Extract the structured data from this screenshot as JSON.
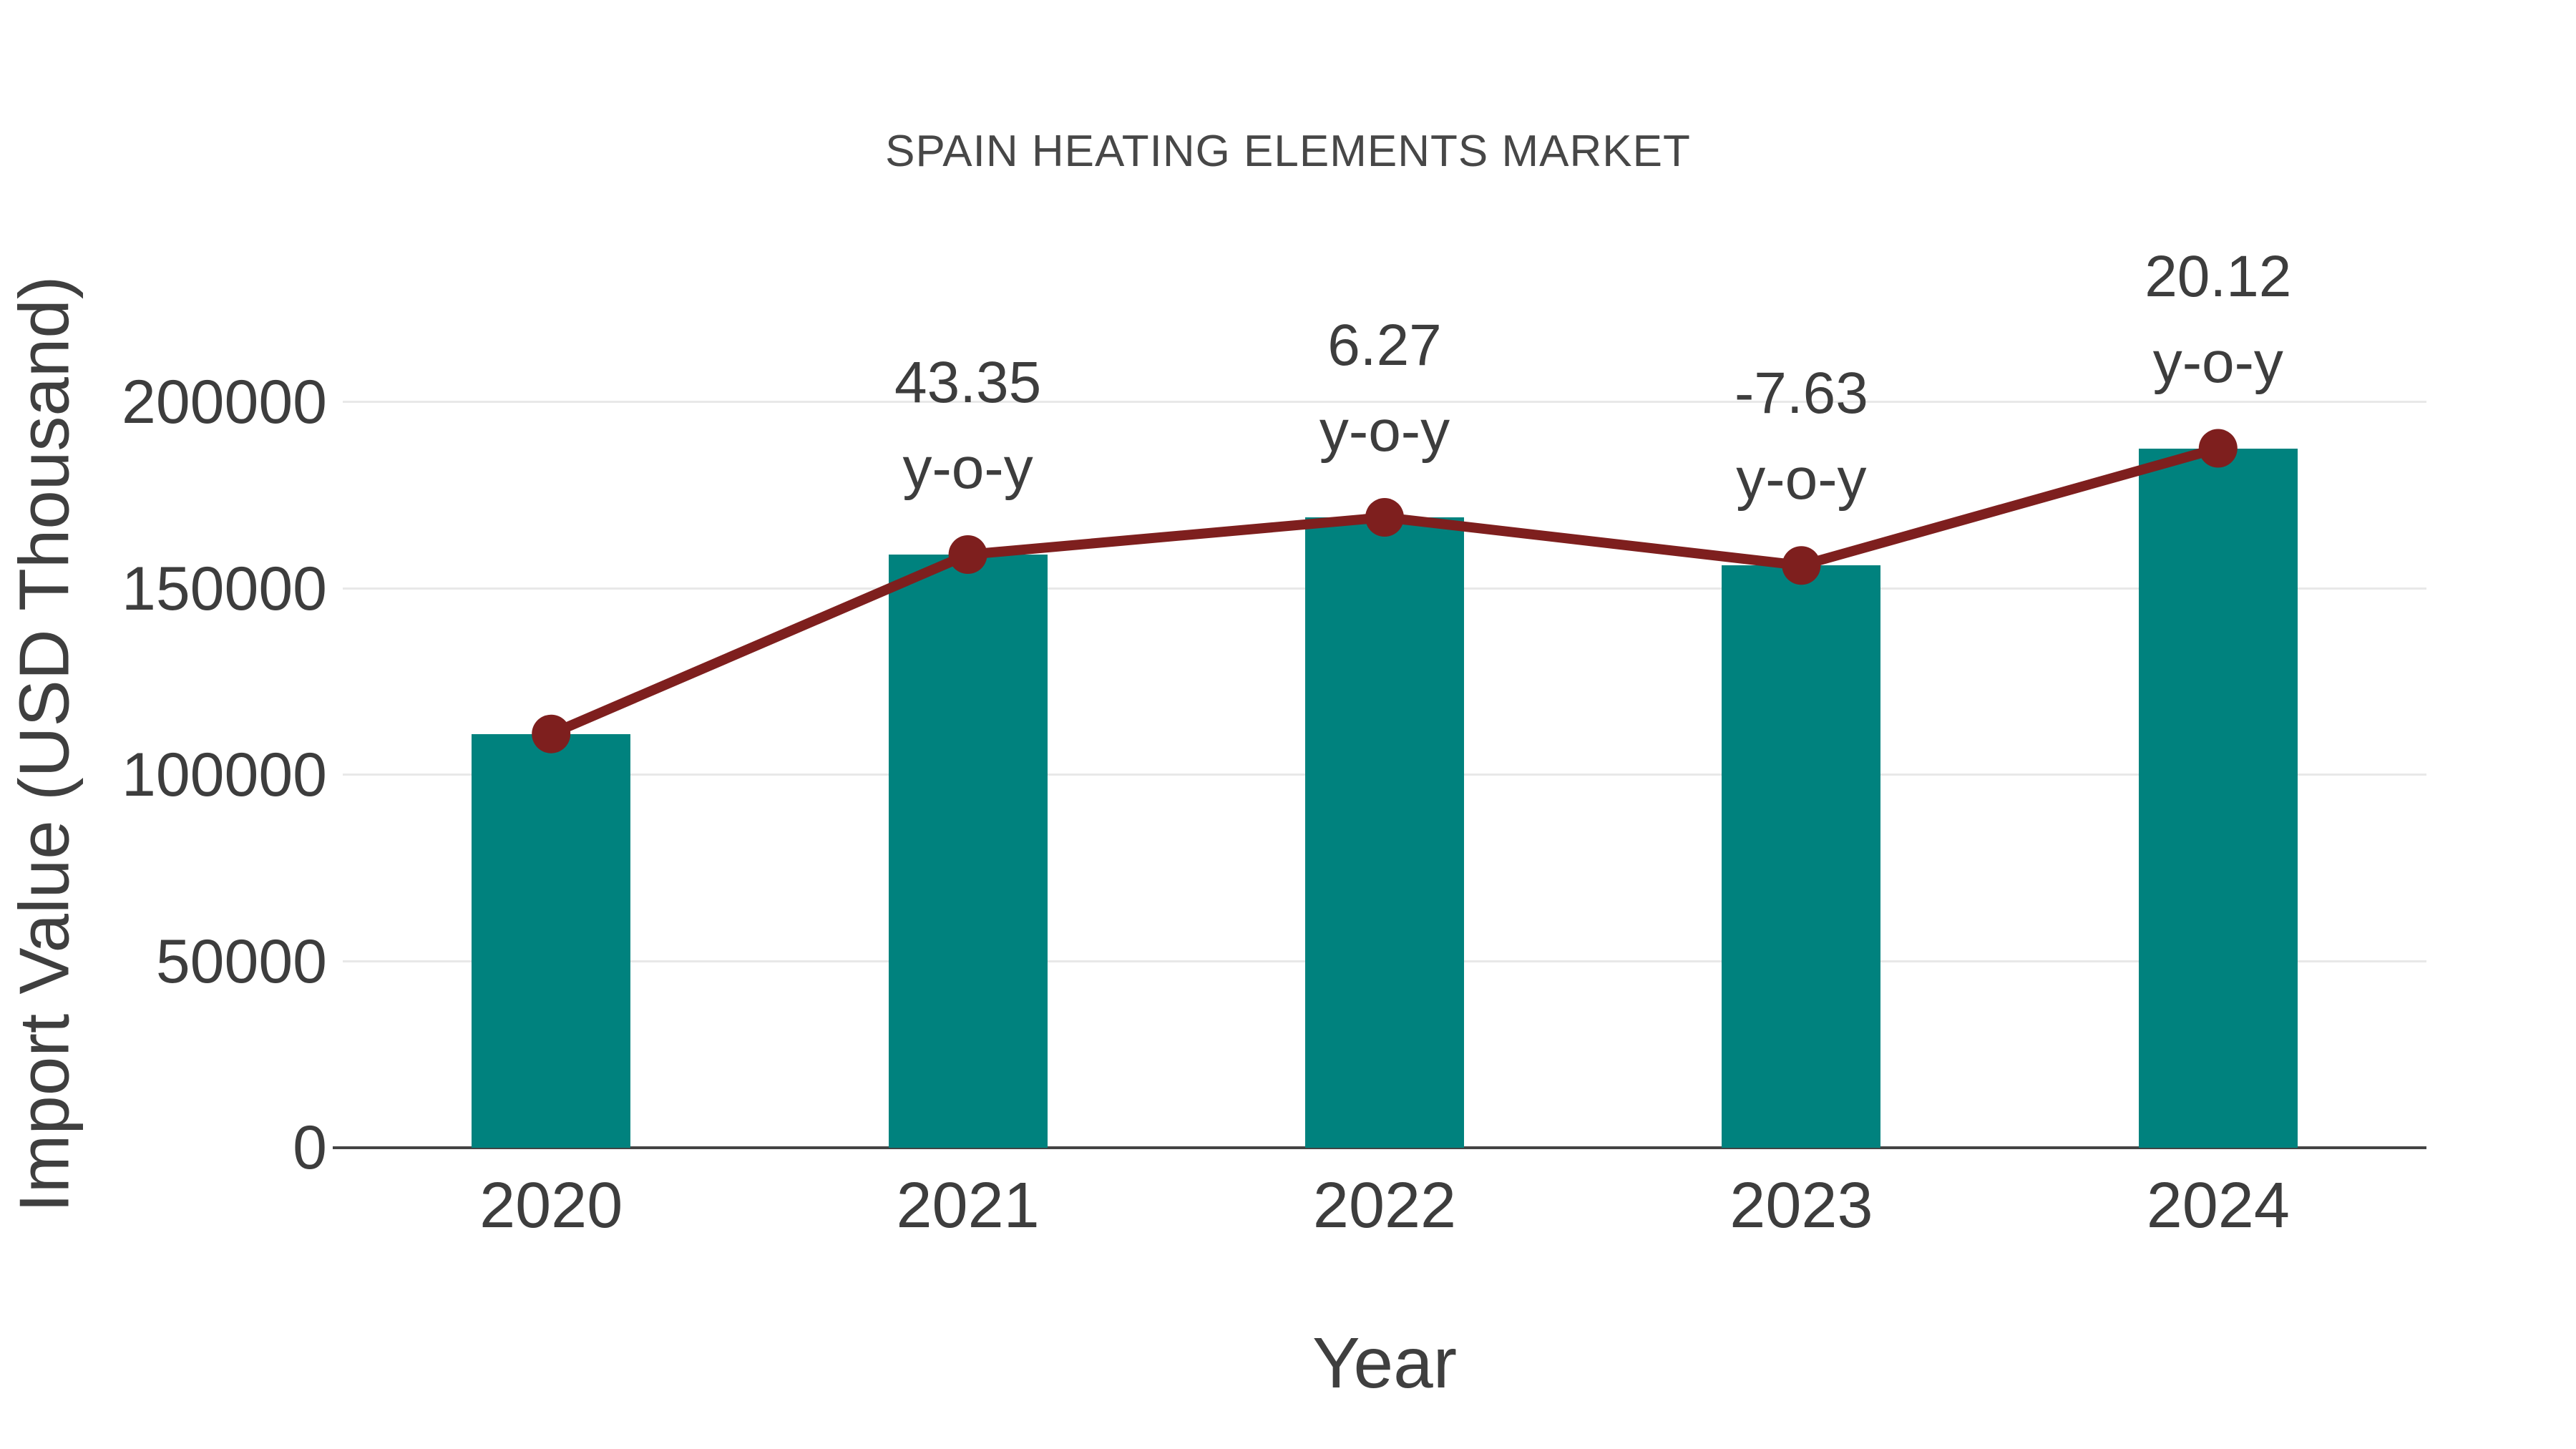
{
  "title": "SPAIN HEATING ELEMENTS MARKET",
  "chart_data": {
    "type": "bar",
    "title": "SPAIN HEATING ELEMENTS MARKET",
    "xlabel": "Year",
    "ylabel": "Import Value (USD Thousand)",
    "categories": [
      "2020",
      "2021",
      "2022",
      "2023",
      "2024"
    ],
    "series": [
      {
        "name": "Import Value (USD Thousand)",
        "type": "bar",
        "values": [
          111000,
          159119,
          169096,
          156193,
          187619
        ]
      },
      {
        "name": "y-o-y growth markers",
        "type": "line",
        "values": [
          111000,
          159119,
          169096,
          156193,
          187619
        ]
      }
    ],
    "annotations": [
      {
        "category": "2021",
        "value": "43.35",
        "suffix": "y-o-y"
      },
      {
        "category": "2022",
        "value": "6.27",
        "suffix": "y-o-y"
      },
      {
        "category": "2023",
        "value": "-7.63",
        "suffix": "y-o-y"
      },
      {
        "category": "2024",
        "value": "20.12",
        "suffix": "y-o-y"
      }
    ],
    "yticks": [
      0,
      50000,
      100000,
      150000,
      200000
    ],
    "ylim": [
      0,
      221500
    ],
    "grid": true,
    "legend": "none",
    "colors": {
      "bar": "#00827e",
      "line": "#7e1f1e",
      "gridline": "#e8e8e8",
      "axis_line": "#444444",
      "text": "#3d3d3d",
      "title_text": "#474747"
    }
  }
}
